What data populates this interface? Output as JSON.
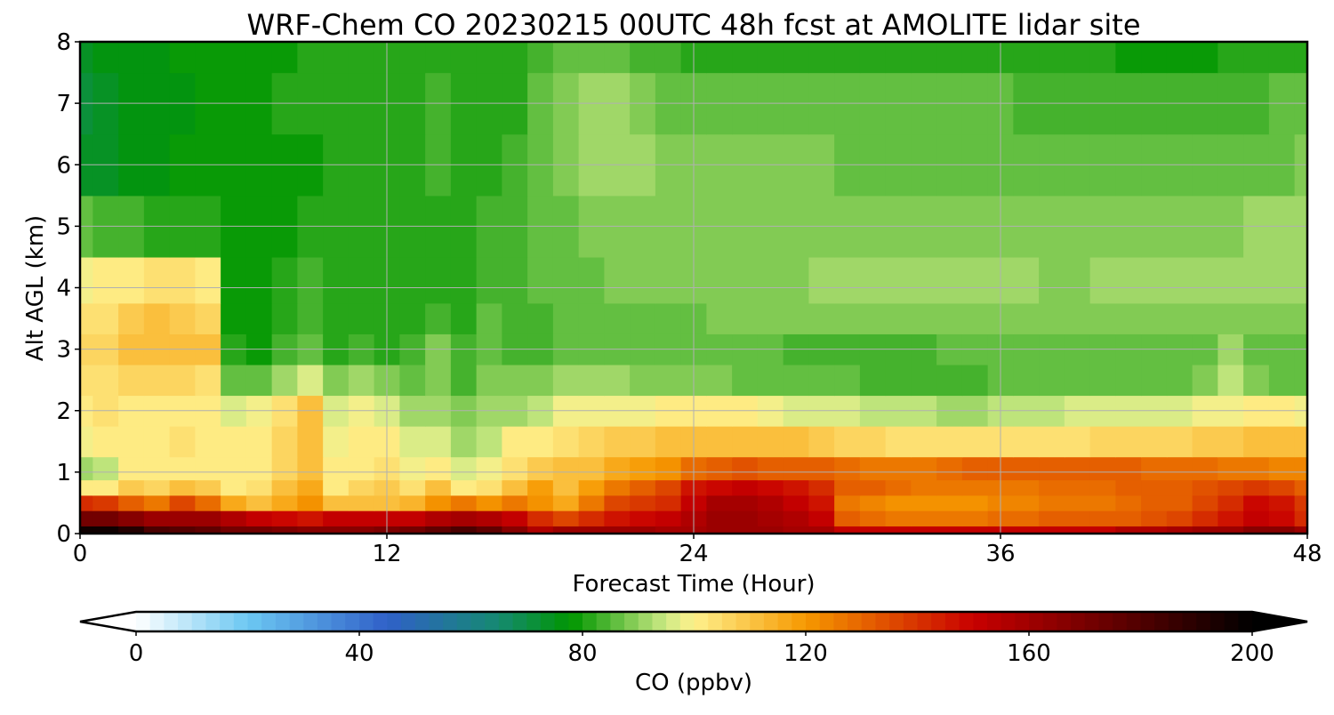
{
  "chart_data": {
    "type": "heatmap",
    "title": "WRF-Chem CO  20230215 00UTC 48h fcst at AMOLITE lidar site",
    "xlabel": "Forecast Time (Hour)",
    "ylabel": "Alt AGL (km)",
    "xlim": [
      0,
      48
    ],
    "ylim": [
      0,
      8
    ],
    "x_ticks": [
      0,
      12,
      24,
      36,
      48
    ],
    "y_ticks": [
      0,
      1,
      2,
      3,
      4,
      5,
      6,
      7,
      8
    ],
    "grid": true,
    "colorbar": {
      "label": "CO  (ppbv)",
      "min": 0,
      "max": 200,
      "ticks": [
        0,
        40,
        80,
        120,
        160,
        200
      ],
      "extend": "both",
      "stops": [
        {
          "v": 0,
          "c": "#ffffff"
        },
        {
          "v": 20,
          "c": "#6cc8f2"
        },
        {
          "v": 45,
          "c": "#3060c8"
        },
        {
          "v": 65,
          "c": "#158a70"
        },
        {
          "v": 78,
          "c": "#009600"
        },
        {
          "v": 95,
          "c": "#cdea85"
        },
        {
          "v": 100,
          "c": "#fff08c"
        },
        {
          "v": 120,
          "c": "#f69800"
        },
        {
          "v": 150,
          "c": "#c80000"
        },
        {
          "v": 175,
          "c": "#640000"
        },
        {
          "v": 200,
          "c": "#000000"
        }
      ]
    },
    "x": [
      0,
      1,
      2,
      3,
      4,
      5,
      6,
      7,
      8,
      9,
      10,
      11,
      12,
      13,
      14,
      15,
      16,
      17,
      18,
      19,
      20,
      21,
      22,
      23,
      24,
      25,
      26,
      27,
      28,
      29,
      30,
      31,
      32,
      33,
      34,
      35,
      36,
      37,
      38,
      39,
      40,
      41,
      42,
      43,
      44,
      45,
      46,
      47,
      48
    ],
    "y": [
      0,
      0.25,
      0.5,
      0.75,
      1,
      1.5,
      2,
      2.5,
      3,
      3.5,
      4,
      5,
      6,
      7,
      8
    ],
    "z": [
      [
        195,
        195,
        190,
        182,
        178,
        175,
        170,
        170,
        168,
        166,
        166,
        166,
        168,
        170,
        175,
        180,
        175,
        165,
        155,
        160,
        160,
        162,
        160,
        158,
        158,
        162,
        162,
        160,
        158,
        158,
        152,
        150,
        150,
        150,
        150,
        150,
        150,
        150,
        152,
        152,
        152,
        155,
        155,
        158,
        160,
        162,
        165,
        165,
        160
      ],
      [
        170,
        170,
        165,
        160,
        162,
        160,
        155,
        150,
        148,
        145,
        150,
        152,
        150,
        152,
        155,
        158,
        155,
        150,
        140,
        135,
        140,
        145,
        148,
        150,
        155,
        160,
        160,
        158,
        155,
        150,
        130,
        128,
        126,
        125,
        125,
        126,
        128,
        128,
        130,
        130,
        130,
        132,
        134,
        136,
        140,
        145,
        150,
        148,
        140
      ],
      [
        140,
        138,
        130,
        125,
        135,
        128,
        115,
        112,
        115,
        120,
        112,
        110,
        112,
        113,
        120,
        125,
        120,
        125,
        120,
        115,
        125,
        135,
        138,
        142,
        150,
        158,
        158,
        155,
        152,
        145,
        125,
        124,
        120,
        120,
        120,
        122,
        124,
        124,
        126,
        126,
        126,
        128,
        130,
        132,
        136,
        140,
        148,
        145,
        138
      ],
      [
        100,
        102,
        108,
        106,
        110,
        108,
        102,
        104,
        110,
        115,
        102,
        105,
        108,
        104,
        110,
        102,
        104,
        112,
        118,
        112,
        118,
        126,
        130,
        136,
        145,
        148,
        150,
        148,
        145,
        140,
        132,
        130,
        128,
        126,
        125,
        125,
        126,
        127,
        128,
        128,
        128,
        130,
        130,
        132,
        134,
        136,
        138,
        136,
        132
      ],
      [
        92,
        94,
        100,
        100,
        102,
        102,
        100,
        102,
        106,
        112,
        100,
        102,
        104,
        98,
        100,
        95,
        98,
        104,
        108,
        110,
        112,
        116,
        118,
        122,
        128,
        132,
        134,
        132,
        130,
        130,
        128,
        126,
        126,
        126,
        128,
        130,
        130,
        130,
        132,
        132,
        132,
        130,
        128,
        128,
        128,
        126,
        126,
        124,
        124
      ],
      [
        98,
        100,
        102,
        102,
        104,
        102,
        100,
        102,
        106,
        112,
        99,
        101,
        100,
        95,
        96,
        90,
        93,
        100,
        100,
        104,
        106,
        108,
        108,
        110,
        112,
        112,
        112,
        112,
        110,
        108,
        106,
        105,
        104,
        104,
        104,
        104,
        104,
        104,
        104,
        104,
        105,
        106,
        106,
        106,
        108,
        108,
        110,
        110,
        112
      ],
      [
        102,
        103,
        100,
        100,
        102,
        100,
        96,
        98,
        103,
        110,
        96,
        98,
        96,
        92,
        92,
        88,
        90,
        92,
        94,
        98,
        98,
        99,
        99,
        100,
        100,
        100,
        100,
        98,
        97,
        96,
        95,
        94,
        93,
        93,
        92,
        92,
        93,
        93,
        94,
        95,
        96,
        96,
        96,
        97,
        98,
        98,
        102,
        100,
        98
      ],
      [
        104,
        104,
        105,
        105,
        106,
        104,
        86,
        85,
        90,
        97,
        89,
        91,
        88,
        86,
        88,
        84,
        88,
        88,
        88,
        90,
        90,
        90,
        89,
        89,
        88,
        88,
        87,
        87,
        86,
        85,
        85,
        84,
        84,
        84,
        84,
        84,
        85,
        85,
        86,
        86,
        86,
        87,
        87,
        87,
        89,
        94,
        88,
        87,
        86
      ],
      [
        105,
        106,
        110,
        112,
        112,
        110,
        80,
        79,
        84,
        86,
        82,
        83,
        82,
        83,
        88,
        84,
        86,
        84,
        84,
        85,
        85,
        86,
        86,
        86,
        85,
        85,
        85,
        85,
        84,
        84,
        84,
        84,
        84,
        84,
        85,
        85,
        85,
        85,
        86,
        86,
        86,
        86,
        86,
        86,
        86,
        90,
        86,
        86,
        86
      ],
      [
        103,
        104,
        108,
        110,
        108,
        105,
        79,
        78,
        82,
        84,
        81,
        82,
        81,
        82,
        84,
        82,
        86,
        84,
        84,
        85,
        86,
        87,
        87,
        87,
        87,
        88,
        88,
        88,
        88,
        88,
        88,
        88,
        88,
        88,
        88,
        88,
        88,
        88,
        88,
        88,
        88,
        88,
        88,
        88,
        88,
        89,
        88,
        88,
        88
      ],
      [
        98,
        100,
        102,
        103,
        104,
        100,
        78,
        78,
        81,
        83,
        80,
        81,
        80,
        81,
        82,
        82,
        84,
        84,
        85,
        86,
        87,
        88,
        88,
        88,
        88,
        89,
        89,
        89,
        89,
        90,
        90,
        90,
        90,
        90,
        90,
        91,
        90,
        90,
        89,
        89,
        90,
        90,
        90,
        90,
        90,
        90,
        90,
        90,
        90
      ],
      [
        85,
        84,
        83,
        82,
        81,
        80,
        78,
        78,
        79,
        80,
        80,
        80,
        80,
        81,
        82,
        82,
        83,
        84,
        86,
        87,
        88,
        88,
        88,
        88,
        88,
        88,
        89,
        89,
        89,
        89,
        89,
        89,
        89,
        89,
        89,
        89,
        89,
        89,
        89,
        88,
        88,
        88,
        89,
        89,
        89,
        89,
        90,
        90,
        91
      ],
      [
        73,
        74,
        76,
        77,
        78,
        78,
        78,
        78,
        79,
        79,
        80,
        81,
        81,
        82,
        83,
        82,
        82,
        83,
        86,
        88,
        90,
        91,
        90,
        89,
        88,
        88,
        88,
        88,
        88,
        88,
        87,
        87,
        87,
        87,
        87,
        87,
        87,
        87,
        87,
        87,
        86,
        86,
        86,
        86,
        86,
        86,
        87,
        87,
        88
      ],
      [
        72,
        73,
        75,
        76,
        77,
        78,
        78,
        79,
        80,
        80,
        81,
        81,
        82,
        82,
        83,
        82,
        81,
        82,
        85,
        88,
        91,
        90,
        88,
        87,
        86,
        86,
        86,
        86,
        86,
        86,
        86,
        85,
        85,
        85,
        85,
        85,
        85,
        84,
        84,
        84,
        84,
        83,
        83,
        83,
        84,
        84,
        84,
        85,
        85
      ],
      [
        74,
        75,
        76,
        77,
        78,
        78,
        78,
        79,
        79,
        80,
        80,
        81,
        81,
        82,
        82,
        82,
        81,
        81,
        83,
        86,
        87,
        86,
        84,
        83,
        82,
        82,
        82,
        82,
        81,
        81,
        81,
        81,
        80,
        80,
        80,
        80,
        80,
        80,
        80,
        80,
        80,
        79,
        78,
        78,
        79,
        80,
        81,
        82,
        82
      ]
    ]
  }
}
